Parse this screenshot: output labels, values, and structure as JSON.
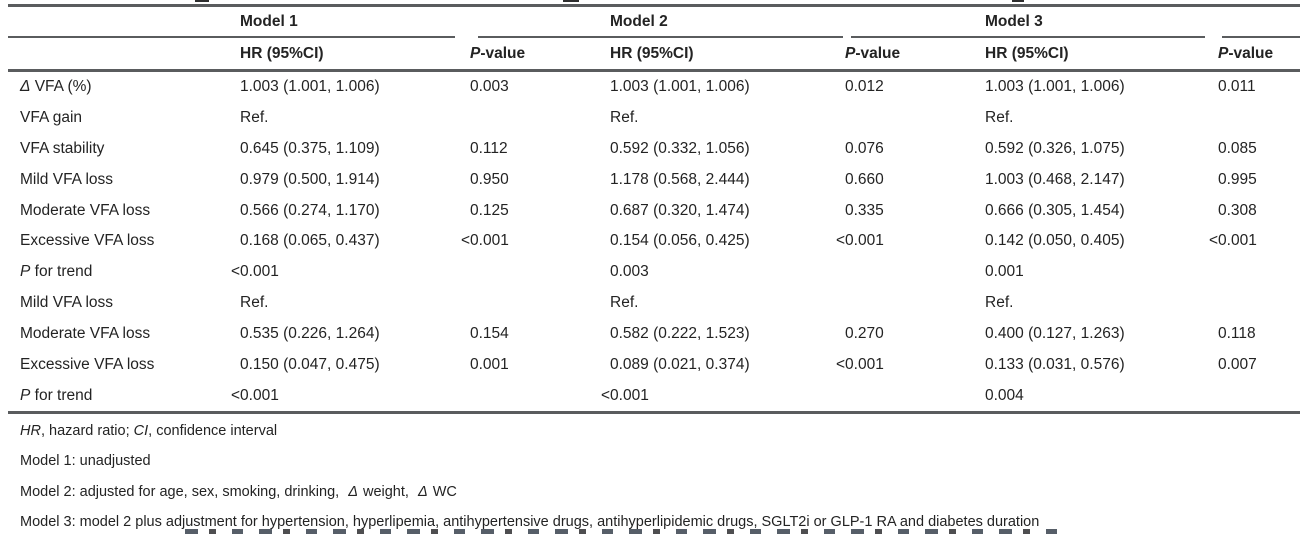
{
  "table": {
    "spanners": [
      "Model 1",
      "Model 2",
      "Model 3"
    ],
    "subheader": {
      "hr_label": "HR (95%CI)",
      "p_label_prefix": "P",
      "p_label_suffix": "-value"
    },
    "rows": [
      {
        "label_prefix": "Δ",
        "label": " VFA (%)",
        "cells": [
          "1.003 (1.001, 1.006)",
          "0.003",
          "1.003 (1.001, 1.006)",
          "0.012",
          "1.003 (1.001, 1.006)",
          "0.011"
        ]
      },
      {
        "label_prefix": "",
        "label": "VFA gain",
        "cells": [
          "Ref.",
          "",
          "Ref.",
          "",
          "Ref.",
          ""
        ]
      },
      {
        "label_prefix": "",
        "label": "VFA stability",
        "cells": [
          "0.645 (0.375, 1.109)",
          "0.112",
          "0.592 (0.332, 1.056)",
          "0.076",
          "0.592 (0.326, 1.075)",
          "0.085"
        ]
      },
      {
        "label_prefix": "",
        "label": "Mild VFA loss",
        "cells": [
          "0.979 (0.500, 1.914)",
          "0.950",
          "1.178 (0.568, 2.444)",
          "0.660",
          "1.003 (0.468, 2.147)",
          "0.995"
        ]
      },
      {
        "label_prefix": "",
        "label": "Moderate VFA loss",
        "cells": [
          "0.566 (0.274, 1.170)",
          "0.125",
          "0.687 (0.320, 1.474)",
          "0.335",
          "0.666 (0.305, 1.454)",
          "0.308"
        ]
      },
      {
        "label_prefix": "",
        "label": "Excessive VFA loss",
        "cells": [
          "0.168 (0.065, 0.437)",
          "<0.001",
          "0.154 (0.056, 0.425)",
          "<0.001",
          "0.142 (0.050, 0.405)",
          "<0.001"
        ]
      },
      {
        "label_prefix": "P",
        "label": " for trend",
        "cells": [
          "<0.001",
          "",
          "0.003",
          "",
          "0.001",
          ""
        ]
      },
      {
        "label_prefix": "",
        "label": "Mild VFA loss",
        "cells": [
          "Ref.",
          "",
          "Ref.",
          "",
          "Ref.",
          ""
        ]
      },
      {
        "label_prefix": "",
        "label": "Moderate VFA loss",
        "cells": [
          "0.535 (0.226, 1.264)",
          "0.154",
          "0.582 (0.222, 1.523)",
          "0.270",
          "0.400 (0.127, 1.263)",
          "0.118"
        ]
      },
      {
        "label_prefix": "",
        "label": "Excessive VFA loss",
        "cells": [
          "0.150 (0.047, 0.475)",
          "0.001",
          "0.089 (0.021, 0.374)",
          "<0.001",
          "0.133 (0.031, 0.576)",
          "0.007"
        ]
      },
      {
        "label_prefix": "P",
        "label": " for trend",
        "cells": [
          "<0.001",
          "",
          "<0.001",
          "",
          "0.004",
          ""
        ]
      }
    ]
  },
  "footnotes": [
    [
      {
        "t": "HR",
        "i": true
      },
      {
        "t": ", hazard ratio; "
      },
      {
        "t": "CI",
        "i": true
      },
      {
        "t": ", confidence interval"
      }
    ],
    [
      {
        "t": "Model 1: unadjusted"
      }
    ],
    [
      {
        "t": "Model 2: adjusted for age, sex, smoking, drinking, "
      },
      {
        "t": "Δ",
        "i": true,
        "pad": true
      },
      {
        "t": " weight, "
      },
      {
        "t": "Δ",
        "i": true,
        "pad": true
      },
      {
        "t": " WC"
      }
    ],
    [
      {
        "t": "Model 3: model 2 plus adjustment for hypertension, hyperlipemia, antihypertensive drugs, antihyperlipidemic drugs, SGLT2i or GLP-1 RA and diabetes duration"
      }
    ]
  ],
  "colors": {
    "text": "#232323",
    "rule": "#5a5c5e",
    "background": "#ffffff"
  }
}
